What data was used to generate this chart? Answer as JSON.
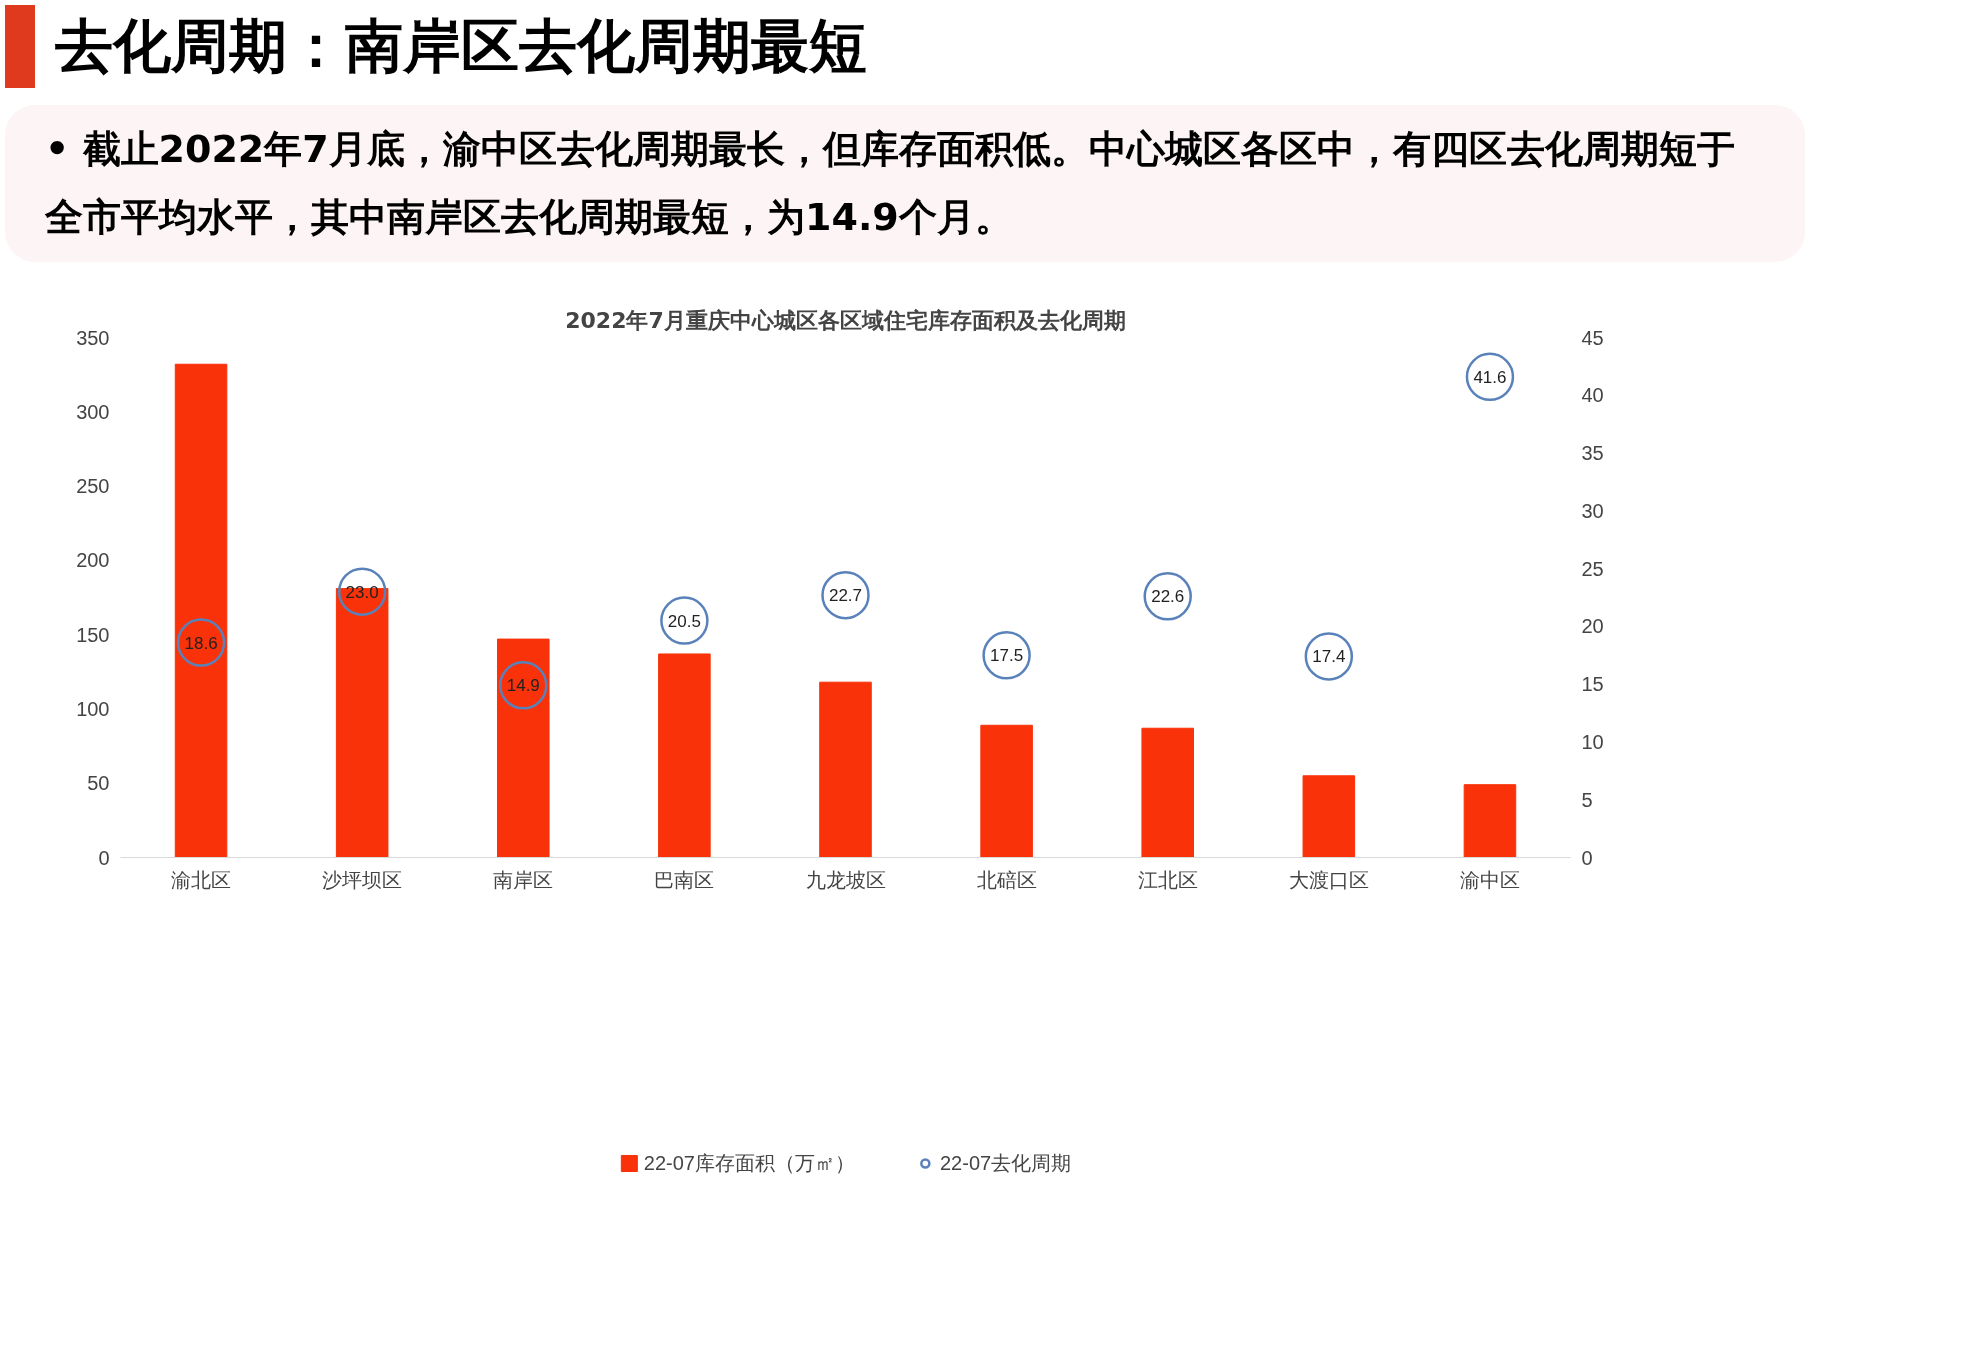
{
  "chart_data": {
    "type": "bar",
    "title": "2022年7月重庆中心城区各区域住宅库存面积及去化周期",
    "annotations": [
      "去化周期：南岸区去化周期最短",
      "• 截止2022年7月底，渝中区去化周期最长，但库存面积低。中心城区各区中，有四区去化周期短于全市平均水平，其中南岸区去化周期最短，为14.9个月。"
    ],
    "categories": [
      "渝北区",
      "沙坪坝区",
      "南岸区",
      "巴南区",
      "九龙坡区",
      "北碚区",
      "江北区",
      "大渡口区",
      "渝中区"
    ],
    "series": [
      {
        "name": "22-07库存面积（万㎡）",
        "type": "bar",
        "color": "#f93209",
        "values": [
          332,
          181,
          147,
          137,
          118,
          89,
          87,
          55,
          49
        ]
      },
      {
        "name": "22-07去化周期",
        "type": "scatter",
        "axis": "y2",
        "color": "#5a82ba",
        "marker": "circle",
        "values": [
          18.6,
          23.0,
          14.9,
          20.5,
          22.7,
          17.5,
          22.6,
          17.4,
          41.6
        ],
        "value_labels": [
          "18.6",
          "23.0",
          "14.9",
          "20.5",
          "22.7",
          "17.5",
          "22.6",
          "17.4",
          "41.6"
        ]
      }
    ],
    "ylim": [
      0,
      350
    ],
    "yticks": [
      0,
      50,
      100,
      150,
      200,
      250,
      300,
      350
    ],
    "y2lim": [
      0,
      45
    ],
    "y2ticks": [
      0,
      5,
      10,
      15,
      20,
      25,
      30,
      35,
      40,
      45
    ],
    "grid": false,
    "legend": "bottom"
  }
}
